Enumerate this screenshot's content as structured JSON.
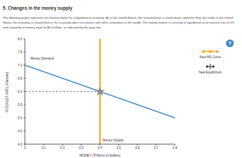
{
  "chart_data": {
    "type": "line",
    "title": "5. Changes in the money supply",
    "subtitle": "The following graph represents the money market in a hypothetical economy. As in the United States, this economy has a central bank called the Fed, but unlike in the United States, the economy is closed (that is, the economy does not interact with other economies in the world). The money market is currently in equilibrium at an interest rate of 6% and a quantity of money equal to $0.4 trillion, as indicated by the grey star.",
    "x_label": "MONEY (Trillions of dollars)",
    "y_label": "INTEREST RATE (Percent)",
    "xlim": [
      0,
      0.8
    ],
    "xticks": [
      0,
      0.1,
      0.2,
      0.3,
      0.4,
      0.5,
      0.6,
      0.7,
      0.8
    ],
    "ylim": [
      4,
      8
    ],
    "yticks": [
      {
        "value": 4,
        "label": "4.0"
      },
      {
        "value": 4.5,
        "label": "4.5"
      },
      {
        "value": 5,
        "label": "5.0"
      },
      {
        "value": 5.5,
        "label": "5.5"
      },
      {
        "value": 6,
        "label": "6.0"
      },
      {
        "value": 6.5,
        "label": "6.5"
      },
      {
        "value": 7,
        "label": "7.0"
      },
      {
        "value": 7.5,
        "label": "7.5"
      },
      {
        "value": 8,
        "label": "8.0"
      }
    ],
    "grid": false,
    "series": [
      {
        "name": "Money Demand",
        "color": "#3f86c6",
        "x": [
          0,
          0.8
        ],
        "values": [
          7,
          5
        ]
      },
      {
        "name": "Money Supply",
        "color": "#f5a623",
        "x": [
          0.4,
          0.4
        ],
        "values": [
          4,
          8
        ]
      },
      {
        "type": "scatter",
        "marker": "star",
        "color": "#8c8c8c",
        "x": [
          0.4
        ],
        "values": [
          6
        ]
      }
    ],
    "palette": [
      {
        "label": "New MS Curve",
        "color": "#f5a623",
        "marker": "triangle"
      },
      {
        "label": "New Equilibrium",
        "color": "#222222",
        "marker": "plus"
      }
    ],
    "help": "?"
  }
}
